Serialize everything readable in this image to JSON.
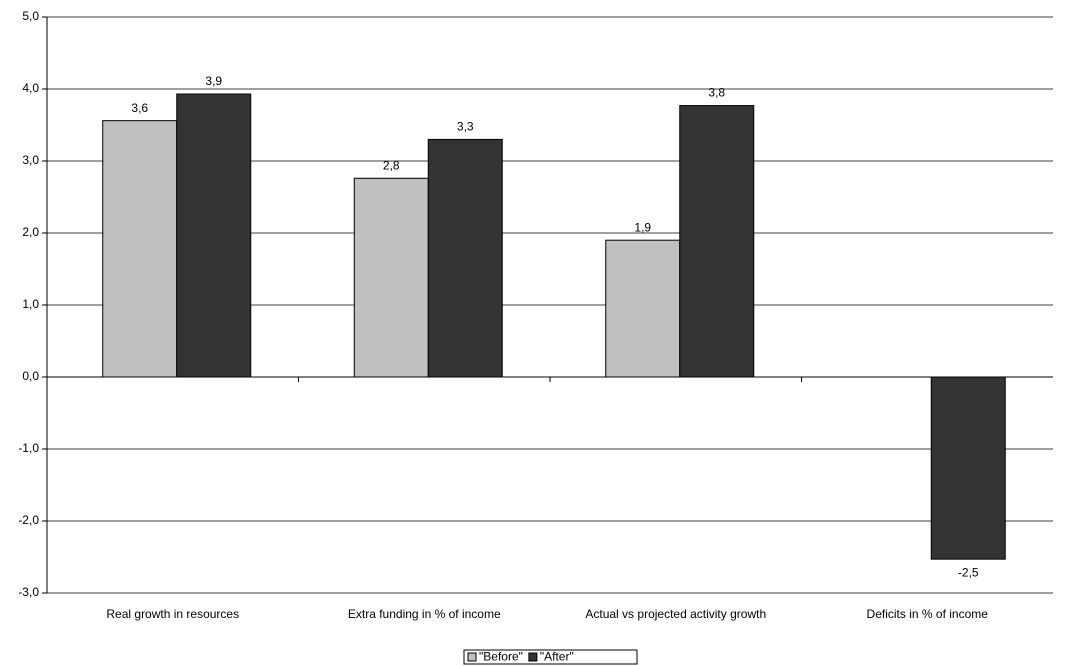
{
  "chart_data": {
    "type": "bar",
    "categories": [
      "Real growth in resources",
      "Extra funding in % of income",
      "Actual vs projected activity growth",
      "Deficits in % of income"
    ],
    "series": [
      {
        "name": "\"Before\"",
        "color": "#c0c0c0",
        "values": [
          3.56,
          2.76,
          1.9,
          null
        ],
        "value_labels": [
          "3,6",
          "2,8",
          "1,9",
          null
        ]
      },
      {
        "name": "\"After\"",
        "color": "#333333",
        "values": [
          3.93,
          3.3,
          3.77,
          -2.53
        ],
        "value_labels": [
          "3,9",
          "3,3",
          "3,8",
          "-2,5"
        ]
      }
    ],
    "ylim": [
      -3,
      5
    ],
    "yticks": [
      {
        "value": -3,
        "label": "-3,0"
      },
      {
        "value": -2,
        "label": "-2,0"
      },
      {
        "value": -1,
        "label": "-1,0"
      },
      {
        "value": 0,
        "label": "0,0"
      },
      {
        "value": 1,
        "label": "1,0"
      },
      {
        "value": 2,
        "label": "2,0"
      },
      {
        "value": 3,
        "label": "3,0"
      },
      {
        "value": 4,
        "label": "4,0"
      },
      {
        "value": 5,
        "label": "5,0"
      }
    ],
    "grid": true,
    "legend": "bottom"
  }
}
